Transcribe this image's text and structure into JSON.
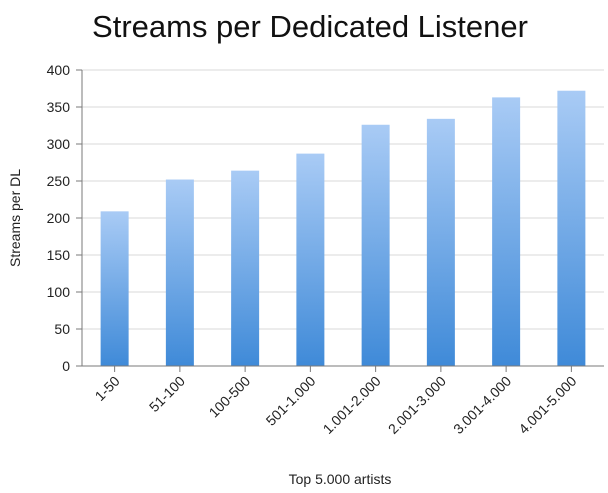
{
  "chart_data": {
    "type": "bar",
    "title": "Streams per Dedicated Listener",
    "xlabel": "Top 5.000 artists",
    "ylabel": "Streams per DL",
    "categories": [
      "1-50",
      "51-100",
      "100-500",
      "501-1.000",
      "1.001-2.000",
      "2.001-3.000",
      "3.001-4.000",
      "4.001-5.000"
    ],
    "values": [
      209,
      252,
      264,
      287,
      326,
      334,
      363,
      372
    ],
    "ylim": [
      0,
      400
    ],
    "yticks": [
      "0",
      "50",
      "100",
      "150",
      "200",
      "250",
      "300",
      "350",
      "400"
    ],
    "grid": true,
    "legend": "none",
    "colors": {
      "bar_top": "#a9cbf5",
      "bar_bottom": "#3f8ad8",
      "grid": "#d8d8d8",
      "axis": "#7a7a7a"
    }
  }
}
